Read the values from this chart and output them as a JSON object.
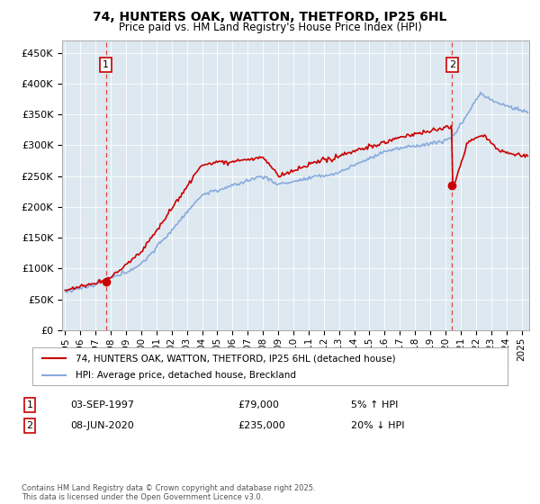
{
  "title": "74, HUNTERS OAK, WATTON, THETFORD, IP25 6HL",
  "subtitle": "Price paid vs. HM Land Registry's House Price Index (HPI)",
  "ylabel_ticks": [
    "£0",
    "£50K",
    "£100K",
    "£150K",
    "£200K",
    "£250K",
    "£300K",
    "£350K",
    "£400K",
    "£450K"
  ],
  "ytick_values": [
    0,
    50000,
    100000,
    150000,
    200000,
    250000,
    300000,
    350000,
    400000,
    450000
  ],
  "xlim_start": 1994.8,
  "xlim_end": 2025.5,
  "ylim": [
    0,
    470000
  ],
  "sale1_date": 1997.67,
  "sale1_price": 79000,
  "sale1_label": "1",
  "sale2_date": 2020.44,
  "sale2_price": 235000,
  "sale2_label": "2",
  "red_line_color": "#cc0000",
  "blue_line_color": "#88aadd",
  "dashed_line_color": "#dd4444",
  "dot_color": "#cc0000",
  "plot_bg_color": "#dde8f0",
  "legend1_text": "74, HUNTERS OAK, WATTON, THETFORD, IP25 6HL (detached house)",
  "legend2_text": "HPI: Average price, detached house, Breckland",
  "annotation1_date": "03-SEP-1997",
  "annotation1_price": "£79,000",
  "annotation1_hpi": "5% ↑ HPI",
  "annotation2_date": "08-JUN-2020",
  "annotation2_price": "£235,000",
  "annotation2_hpi": "20% ↓ HPI",
  "footer": "Contains HM Land Registry data © Crown copyright and database right 2025.\nThis data is licensed under the Open Government Licence v3.0.",
  "background_color": "#ffffff",
  "grid_color": "#ffffff"
}
